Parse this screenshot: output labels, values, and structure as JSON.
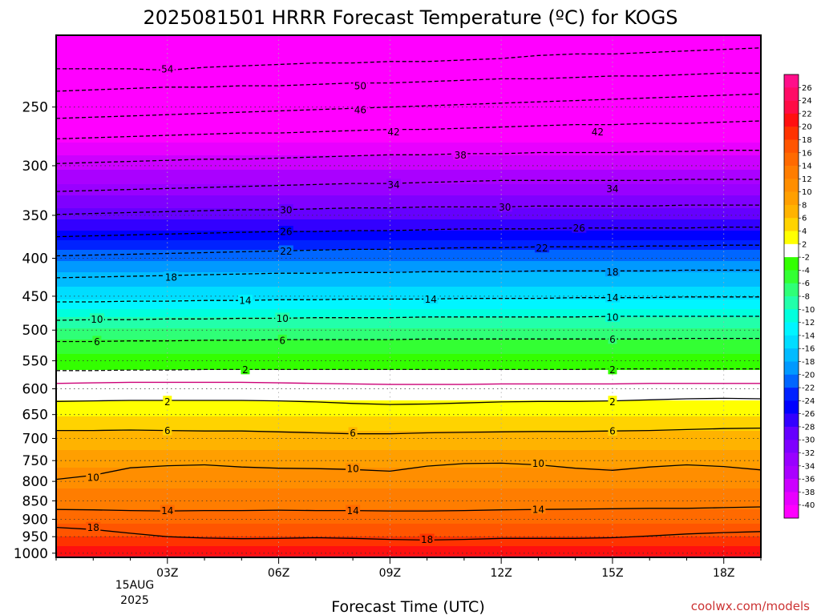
{
  "chart_data": {
    "type": "heatmap",
    "title": "2025081501 HRRR Forecast Temperature (ºC) for KOGS",
    "xlabel": "Forecast Time (UTC)",
    "ylabel": "",
    "credit": "coolwx.com/models",
    "x_ticks": [
      "03Z",
      "06Z",
      "09Z",
      "12Z",
      "15Z",
      "18Z"
    ],
    "x_date": [
      "15AUG",
      "2025"
    ],
    "x_range_hours": [
      0,
      19
    ],
    "y_ticks": [
      250,
      300,
      350,
      400,
      450,
      500,
      550,
      600,
      650,
      700,
      750,
      800,
      850,
      900,
      950,
      1000
    ],
    "y_range_hpa": [
      200,
      1013
    ],
    "y_scale": "log (pressure)",
    "grid": "dotted",
    "colorbar_labels": [
      26,
      24,
      22,
      20,
      18,
      16,
      14,
      12,
      10,
      8,
      6,
      4,
      2,
      -2,
      -4,
      -6,
      -8,
      -10,
      -12,
      -14,
      -16,
      -18,
      -20,
      -22,
      -24,
      -26,
      -28,
      -30,
      -32,
      -34,
      -36,
      -38,
      -40
    ],
    "colorbar_colors": [
      "#ff0e8a",
      "#ff0b66",
      "#ff0b45",
      "#ff1010",
      "#ff3300",
      "#ff5500",
      "#ff6a00",
      "#ff7d00",
      "#ff8e00",
      "#ff9f00",
      "#ffb300",
      "#ffd300",
      "#ffff00",
      "#ffffff",
      "#33ff00",
      "#33ff33",
      "#2fff77",
      "#22ffaa",
      "#00ffdd",
      "#00f5ff",
      "#00ddff",
      "#00bbff",
      "#0099ff",
      "#0066ff",
      "#0022ff",
      "#0000ff",
      "#3300ff",
      "#6600ff",
      "#7f00ff",
      "#9900ff",
      "#aa00ff",
      "#cc00ff",
      "#e800ff",
      "#ff00ff"
    ],
    "contours": [
      {
        "value": -54,
        "pressure": [
          222,
          222,
          222,
          223,
          221,
          220,
          219,
          218,
          218,
          217,
          217,
          216,
          215,
          213,
          212,
          212,
          211,
          210,
          209,
          208
        ]
      },
      {
        "value": -50,
        "pressure": [
          238,
          237,
          236,
          235,
          235,
          234,
          234,
          233,
          232,
          232,
          231,
          230,
          229,
          229,
          228,
          227,
          227,
          226,
          225,
          225
        ]
      },
      {
        "value": -46,
        "pressure": [
          259,
          258,
          257,
          256,
          255,
          254,
          253,
          252,
          251,
          250,
          249,
          248,
          247,
          246,
          245,
          244,
          243,
          242,
          241,
          240
        ]
      },
      {
        "value": -42,
        "pressure": [
          276,
          275,
          274,
          273,
          272,
          271,
          271,
          270,
          269,
          268,
          268,
          267,
          266,
          265,
          264,
          264,
          263,
          263,
          262,
          261
        ]
      },
      {
        "value": -38,
        "pressure": [
          298,
          297,
          296,
          295,
          294,
          294,
          293,
          292,
          291,
          290,
          290,
          289,
          289,
          288,
          288,
          288,
          287,
          287,
          286,
          286
        ]
      },
      {
        "value": -34,
        "pressure": [
          325,
          324,
          323,
          322,
          321,
          320,
          319,
          318,
          317,
          317,
          316,
          315,
          314,
          314,
          314,
          314,
          314,
          313,
          313,
          313
        ]
      },
      {
        "value": -30,
        "pressure": [
          349,
          348,
          347,
          346,
          345,
          344,
          344,
          343,
          342,
          342,
          341,
          341,
          341,
          340,
          340,
          340,
          340,
          339,
          339,
          339
        ]
      },
      {
        "value": -26,
        "pressure": [
          374,
          373,
          372,
          371,
          370,
          369,
          368,
          368,
          367,
          367,
          366,
          365,
          365,
          365,
          364,
          364,
          364,
          364,
          363,
          363
        ]
      },
      {
        "value": -22,
        "pressure": [
          397,
          396,
          395,
          394,
          393,
          392,
          391,
          390,
          389,
          389,
          388,
          387,
          387,
          386,
          386,
          386,
          385,
          385,
          384,
          384
        ]
      },
      {
        "value": -18,
        "pressure": [
          425,
          424,
          423,
          422,
          421,
          420,
          419,
          419,
          418,
          418,
          417,
          417,
          417,
          416,
          416,
          416,
          416,
          415,
          415,
          415
        ]
      },
      {
        "value": -14,
        "pressure": [
          458,
          458,
          457,
          457,
          456,
          456,
          455,
          455,
          454,
          454,
          454,
          453,
          453,
          453,
          452,
          452,
          452,
          451,
          451,
          451
        ]
      },
      {
        "value": -10,
        "pressure": [
          485,
          484,
          484,
          483,
          483,
          482,
          482,
          481,
          481,
          481,
          480,
          480,
          480,
          480,
          480,
          479,
          479,
          479,
          479,
          479
        ]
      },
      {
        "value": -6,
        "pressure": [
          518,
          518,
          517,
          517,
          516,
          516,
          515,
          515,
          515,
          515,
          514,
          514,
          514,
          514,
          514,
          514,
          514,
          513,
          513,
          513
        ]
      },
      {
        "value": -2,
        "pressure": [
          567,
          567,
          566,
          566,
          565,
          565,
          565,
          565,
          565,
          565,
          565,
          565,
          565,
          565,
          565,
          564,
          564,
          564,
          564,
          564
        ]
      },
      {
        "value": 2,
        "pressure": [
          624,
          623,
          622,
          622,
          622,
          622,
          623,
          625,
          628,
          630,
          629,
          627,
          625,
          624,
          624,
          623,
          621,
          619,
          618,
          619
        ]
      },
      {
        "value": 6,
        "pressure": [
          683,
          683,
          682,
          683,
          684,
          684,
          686,
          688,
          690,
          690,
          688,
          687,
          686,
          685,
          685,
          684,
          683,
          681,
          679,
          678
        ]
      },
      {
        "value": 10,
        "pressure": [
          795,
          785,
          767,
          762,
          760,
          765,
          768,
          769,
          771,
          775,
          763,
          757,
          756,
          760,
          768,
          773,
          765,
          760,
          764,
          772
        ]
      },
      {
        "value": 14,
        "pressure": [
          873,
          874,
          876,
          877,
          876,
          876,
          875,
          876,
          876,
          877,
          877,
          876,
          874,
          873,
          872,
          871,
          870,
          870,
          868,
          866
        ]
      },
      {
        "value": 18,
        "pressure": [
          923,
          929,
          940,
          950,
          954,
          956,
          955,
          953,
          955,
          958,
          960,
          958,
          955,
          955,
          955,
          953,
          948,
          942,
          938,
          935
        ]
      }
    ],
    "contour_labels": [
      {
        "text": "54",
        "t": 3.0,
        "p": 222
      },
      {
        "text": "50",
        "t": 8.2,
        "p": 234
      },
      {
        "text": "46",
        "t": 8.2,
        "p": 252
      },
      {
        "text": "42",
        "t": 9.1,
        "p": 270
      },
      {
        "text": "42",
        "t": 14.6,
        "p": 270
      },
      {
        "text": "38",
        "t": 10.9,
        "p": 290
      },
      {
        "text": "34",
        "t": 9.1,
        "p": 318
      },
      {
        "text": "34",
        "t": 15.0,
        "p": 322
      },
      {
        "text": "30",
        "t": 6.2,
        "p": 344
      },
      {
        "text": "30",
        "t": 12.1,
        "p": 341
      },
      {
        "text": "26",
        "t": 6.2,
        "p": 368
      },
      {
        "text": "26",
        "t": 14.1,
        "p": 364
      },
      {
        "text": "22",
        "t": 6.2,
        "p": 391
      },
      {
        "text": "22",
        "t": 13.1,
        "p": 387
      },
      {
        "text": "18",
        "t": 3.1,
        "p": 424
      },
      {
        "text": "18",
        "t": 15.0,
        "p": 417
      },
      {
        "text": "14",
        "t": 5.1,
        "p": 456
      },
      {
        "text": "14",
        "t": 10.1,
        "p": 454
      },
      {
        "text": "14",
        "t": 15.0,
        "p": 452
      },
      {
        "text": "10",
        "t": 1.1,
        "p": 483
      },
      {
        "text": "10",
        "t": 6.1,
        "p": 482
      },
      {
        "text": "10",
        "t": 15.0,
        "p": 480
      },
      {
        "text": "6",
        "t": 1.1,
        "p": 518
      },
      {
        "text": "6",
        "t": 6.1,
        "p": 516
      },
      {
        "text": "6",
        "t": 15.0,
        "p": 514
      },
      {
        "text": "2",
        "t": 5.1,
        "p": 565
      },
      {
        "text": "2",
        "t": 15.0,
        "p": 565
      },
      {
        "text": "2",
        "t": 3.0,
        "p": 624
      },
      {
        "text": "2",
        "t": 15.0,
        "p": 624
      },
      {
        "text": "6",
        "t": 3.0,
        "p": 683
      },
      {
        "text": "6",
        "t": 8.0,
        "p": 688
      },
      {
        "text": "6",
        "t": 15.0,
        "p": 684
      },
      {
        "text": "10",
        "t": 1.0,
        "p": 790
      },
      {
        "text": "10",
        "t": 8.0,
        "p": 769
      },
      {
        "text": "10",
        "t": 13.0,
        "p": 756
      },
      {
        "text": "14",
        "t": 3.0,
        "p": 876
      },
      {
        "text": "14",
        "t": 8.0,
        "p": 876
      },
      {
        "text": "14",
        "t": 13.0,
        "p": 872
      },
      {
        "text": "18",
        "t": 1.0,
        "p": 923
      },
      {
        "text": "18",
        "t": 10.0,
        "p": 958
      }
    ]
  }
}
